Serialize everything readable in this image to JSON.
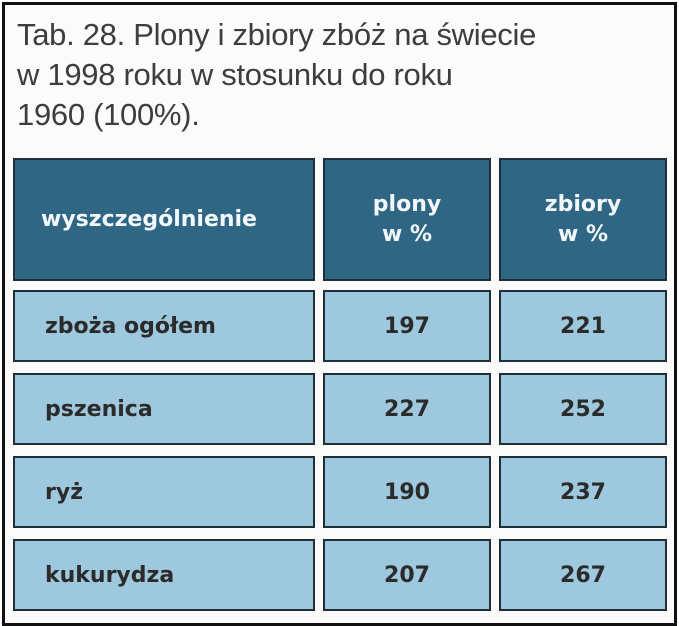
{
  "title": {
    "line1": "Tab. 28. Plony i zbiory zbóż na świecie",
    "line2": "w 1998 roku w stosunku do roku",
    "line3": "1960 (100%)."
  },
  "table": {
    "headers": {
      "col1": "wyszczególnienie",
      "col2_line1": "plony",
      "col2_line2": "w %",
      "col3_line1": "zbiory",
      "col3_line2": "w %"
    },
    "rows": [
      {
        "label": "zboża ogółem",
        "plony": "197",
        "zbiory": "221"
      },
      {
        "label": "pszenica",
        "plony": "227",
        "zbiory": "252"
      },
      {
        "label": "ryż",
        "plony": "190",
        "zbiory": "237"
      },
      {
        "label": "kukurydza",
        "plony": "207",
        "zbiory": "267"
      }
    ]
  },
  "colors": {
    "header_bg": "#2f6683",
    "row_bg": "#9ec8dd",
    "border": "#1f2e38"
  }
}
